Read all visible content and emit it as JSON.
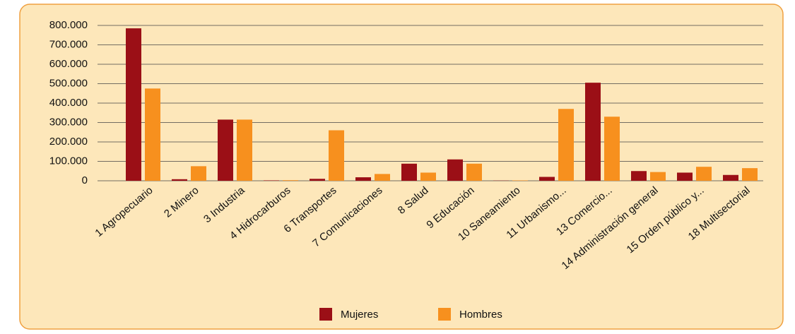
{
  "chart_data": {
    "type": "bar",
    "categories": [
      "1 Agropecuario",
      "2 Minero",
      "3 Industria",
      "4 Hidrocarburos",
      "6 Transportes",
      "7 Comunicaciones",
      "8 Salud",
      "9 Educación",
      "10 Saneamiento",
      "11 Urbanismo...",
      "13 Comercio...",
      "14 Administración general",
      "15 Orden público y...",
      "18 Multisectorial"
    ],
    "series": [
      {
        "name": "Mujeres",
        "color": "#9b0f16",
        "values": [
          785000,
          8000,
          315000,
          2000,
          10000,
          18000,
          88000,
          110000,
          1000,
          20000,
          505000,
          50000,
          42000,
          30000
        ]
      },
      {
        "name": "Hombres",
        "color": "#f7901e",
        "values": [
          475000,
          75000,
          315000,
          3000,
          260000,
          35000,
          42000,
          88000,
          2000,
          370000,
          330000,
          45000,
          72000,
          65000
        ]
      }
    ],
    "ylim": [
      0,
      800000
    ],
    "yticks": [
      0,
      {
        "value": 100000,
        "label": "100.000"
      },
      {
        "value": 200000,
        "label": "200.000"
      },
      {
        "value": 300000,
        "label": "300.000"
      },
      {
        "value": 400000,
        "label": "400.000"
      },
      {
        "value": 500000,
        "label": "500.000"
      },
      {
        "value": 600000,
        "label": "600.000"
      },
      {
        "value": 700000,
        "label": "700.000"
      },
      {
        "value": 800000,
        "label": "800.000"
      }
    ],
    "grid": true,
    "legend": "bottom"
  }
}
